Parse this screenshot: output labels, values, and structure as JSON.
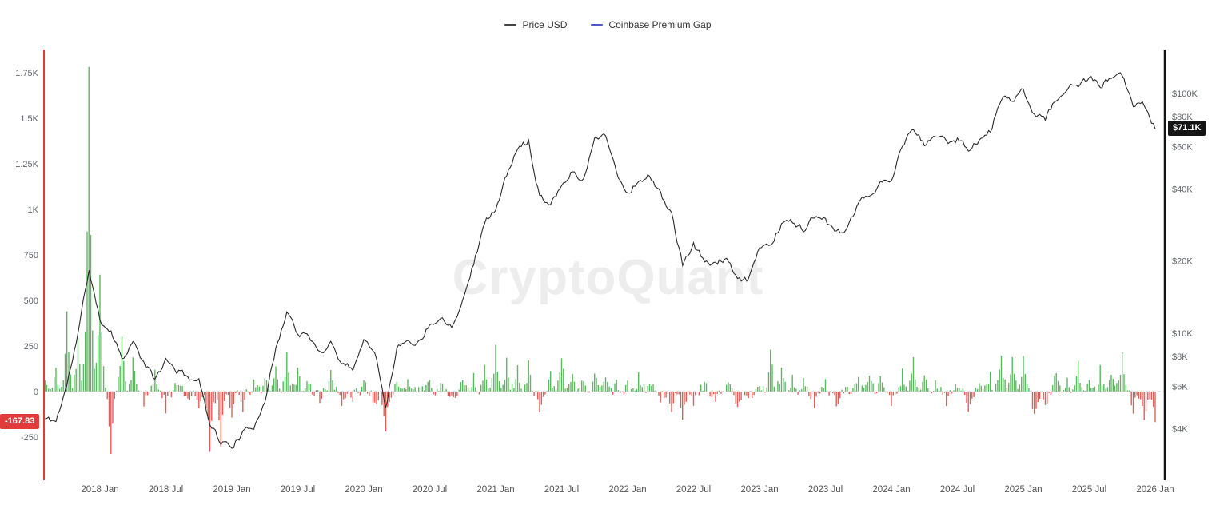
{
  "watermark": "CryptoQuant",
  "legend": [
    {
      "label": "Price USD",
      "color": "#454545"
    },
    {
      "label": "Coinbase Premium Gap",
      "color": "#4f5ac8"
    }
  ],
  "chart_data": {
    "type": "line+bar",
    "title": "",
    "x_unit": "month",
    "months": [
      "2017-08",
      "2017-09",
      "2017-10",
      "2017-11",
      "2017-12",
      "2018-01",
      "2018-02",
      "2018-03",
      "2018-04",
      "2018-05",
      "2018-06",
      "2018-07",
      "2018-08",
      "2018-09",
      "2018-10",
      "2018-11",
      "2018-12",
      "2019-01",
      "2019-02",
      "2019-03",
      "2019-04",
      "2019-05",
      "2019-06",
      "2019-07",
      "2019-08",
      "2019-09",
      "2019-10",
      "2019-11",
      "2019-12",
      "2020-01",
      "2020-02",
      "2020-03",
      "2020-04",
      "2020-05",
      "2020-06",
      "2020-07",
      "2020-08",
      "2020-09",
      "2020-10",
      "2020-11",
      "2020-12",
      "2021-01",
      "2021-02",
      "2021-03",
      "2021-04",
      "2021-05",
      "2021-06",
      "2021-07",
      "2021-08",
      "2021-09",
      "2021-10",
      "2021-11",
      "2021-12",
      "2022-01",
      "2022-02",
      "2022-03",
      "2022-04",
      "2022-05",
      "2022-06",
      "2022-07",
      "2022-08",
      "2022-09",
      "2022-10",
      "2022-11",
      "2022-12",
      "2023-01",
      "2023-02",
      "2023-03",
      "2023-04",
      "2023-05",
      "2023-06",
      "2023-07",
      "2023-08",
      "2023-09",
      "2023-10",
      "2023-11",
      "2023-12",
      "2024-01",
      "2024-02",
      "2024-03",
      "2024-04",
      "2024-05",
      "2024-06",
      "2024-07",
      "2024-08",
      "2024-09",
      "2024-10",
      "2024-11",
      "2024-12",
      "2025-01",
      "2025-02",
      "2025-03",
      "2025-04",
      "2025-05",
      "2025-06",
      "2025-07",
      "2025-08",
      "2025-09",
      "2025-10",
      "2025-11",
      "2025-12",
      "2026-01"
    ],
    "series": [
      {
        "name": "Price USD",
        "type": "line",
        "axis": "right",
        "color": "#2b2b2b",
        "values": [
          4400,
          4300,
          6100,
          9900,
          18500,
          11200,
          10300,
          7900,
          9200,
          7500,
          6400,
          7700,
          7000,
          6600,
          6300,
          4300,
          3500,
          3400,
          3800,
          4100,
          5300,
          8500,
          12500,
          10000,
          9600,
          8300,
          9200,
          7500,
          7200,
          9300,
          8600,
          5000,
          8600,
          9400,
          9100,
          11000,
          11600,
          10800,
          13800,
          19600,
          29000,
          33100,
          45200,
          58800,
          63500,
          37300,
          35000,
          41500,
          47100,
          43800,
          64300,
          68500,
          46200,
          38500,
          43200,
          45500,
          37700,
          31800,
          19000,
          23300,
          20000,
          19400,
          20500,
          16500,
          16600,
          23100,
          23500,
          28500,
          29300,
          27200,
          30500,
          29200,
          26000,
          27000,
          34500,
          37700,
          42300,
          42600,
          61200,
          71300,
          60600,
          67500,
          62700,
          64600,
          59000,
          63300,
          70200,
          96400,
          93400,
          102400,
          84300,
          78000,
          94200,
          104600,
          107100,
          115800,
          108200,
          114000,
          118000,
          91000,
          90000,
          71100
        ]
      },
      {
        "name": "Coinbase Premium Gap",
        "type": "bar",
        "axis": "left",
        "color_positive": "#5cb860",
        "color_negative": "#e05d58",
        "values": [
          60,
          120,
          420,
          300,
          1780,
          650,
          -350,
          300,
          180,
          -60,
          120,
          -90,
          60,
          -40,
          -80,
          -350,
          -280,
          -150,
          -90,
          40,
          80,
          150,
          200,
          120,
          60,
          -40,
          90,
          -60,
          -30,
          50,
          -80,
          -220,
          60,
          40,
          30,
          60,
          40,
          -30,
          50,
          80,
          120,
          230,
          180,
          150,
          160,
          -120,
          90,
          200,
          120,
          80,
          100,
          90,
          60,
          40,
          80,
          60,
          -50,
          -120,
          -180,
          -60,
          40,
          -50,
          60,
          -90,
          -40,
          60,
          250,
          120,
          80,
          50,
          -60,
          40,
          -80,
          30,
          60,
          80,
          60,
          -60,
          100,
          180,
          90,
          60,
          -70,
          50,
          -90,
          60,
          80,
          190,
          170,
          200,
          -140,
          -90,
          120,
          80,
          140,
          90,
          130,
          100,
          240,
          -120,
          -180,
          -167.83
        ]
      }
    ],
    "left_axis": {
      "scale": "linear",
      "ticks": [
        "1.75K",
        "1.5K",
        "1.25K",
        "1K",
        "750",
        "500",
        "250",
        "0",
        "-250"
      ],
      "tick_values": [
        1750,
        1500,
        1250,
        1000,
        750,
        500,
        250,
        0,
        -250
      ],
      "current_label": "-167.83",
      "current_value": -167.83,
      "axis_line_color": "#e23b3b"
    },
    "right_axis": {
      "scale": "log",
      "ticks": [
        "$100K",
        "$80K",
        "$60K",
        "$40K",
        "$20K",
        "$10K",
        "$8K",
        "$6K",
        "$4K"
      ],
      "tick_values": [
        100000,
        80000,
        60000,
        40000,
        20000,
        10000,
        8000,
        6000,
        4000
      ],
      "current_label": "$71.1K",
      "current_value": 71100,
      "axis_line_color": "#141414"
    },
    "x_ticks": [
      "2018 Jan",
      "2018 Jul",
      "2019 Jan",
      "2019 Jul",
      "2020 Jan",
      "2020 Jul",
      "2021 Jan",
      "2021 Jul",
      "2022 Jan",
      "2022 Jul",
      "2023 Jan",
      "2023 Jul",
      "2024 Jan",
      "2024 Jul",
      "2025 Jan",
      "2025 Jul",
      "2026 Jan"
    ],
    "zero_line": {
      "value": 0,
      "style": "dashed",
      "color": "#c9c9c9"
    },
    "grid": "off",
    "legend_position": "top-center"
  }
}
